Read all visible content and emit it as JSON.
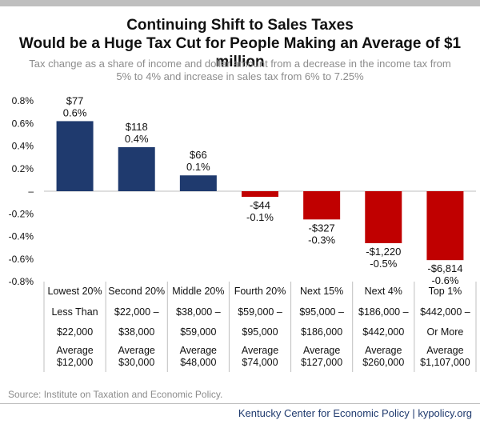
{
  "header": {
    "title_line1": "Continuing Shift to Sales Taxes",
    "title_line2": "Would be a Huge Tax Cut for People Making an Average of $1 million",
    "subtitle_line1": "Tax change as a share of income and dollar amount from a decrease in the income tax from",
    "subtitle_line2": "5% to 4% and increase in sales tax from 6% to 7.25%"
  },
  "chart_data": {
    "type": "bar",
    "categories": [
      "Lowest 20%",
      "Second 20%",
      "Middle 20%",
      "Fourth 20%",
      "Next 15%",
      "Next 4%",
      "Top 1%"
    ],
    "values": [
      0.62,
      0.39,
      0.14,
      -0.05,
      -0.25,
      -0.46,
      -0.61
    ],
    "value_labels": [
      "0.6%",
      "0.4%",
      "0.1%",
      "-0.1%",
      "-0.3%",
      "-0.5%",
      "-0.6%"
    ],
    "dollar_labels": [
      "$77",
      "$118",
      "$66",
      "-$44",
      "-$327",
      "-$1,220",
      "-$6,814"
    ],
    "income_from": [
      "Less Than",
      "$22,000 –",
      "$38,000 –",
      "$59,000 –",
      "$95,000 –",
      "$186,000 –",
      "$442,000 –"
    ],
    "income_to": [
      "$22,000",
      "$38,000",
      "$59,000",
      "$95,000",
      "$186,000",
      "$442,000",
      "Or More"
    ],
    "average_label": "Average",
    "average_income": [
      "$12,000",
      "$30,000",
      "$48,000",
      "$74,000",
      "$127,000",
      "$260,000",
      "$1,107,000"
    ],
    "yticks": [
      0.8,
      0.6,
      0.4,
      0.2,
      0,
      -0.2,
      -0.4,
      -0.6,
      -0.8
    ],
    "ytick_labels": [
      "0.8%",
      "0.6%",
      "0.4%",
      "0.2%",
      "–",
      "-0.2%",
      "-0.4%",
      "-0.6%",
      "-0.8%"
    ],
    "ylim": [
      -0.8,
      0.8
    ],
    "grid": false,
    "colors": {
      "positive": "#1f3a6e",
      "negative": "#c00000",
      "axis": "#bfbfbf"
    }
  },
  "footer": {
    "source": "Source: Institute on Taxation and Economic Policy.",
    "credit": "Kentucky Center for Economic Policy | kypolicy.org"
  }
}
